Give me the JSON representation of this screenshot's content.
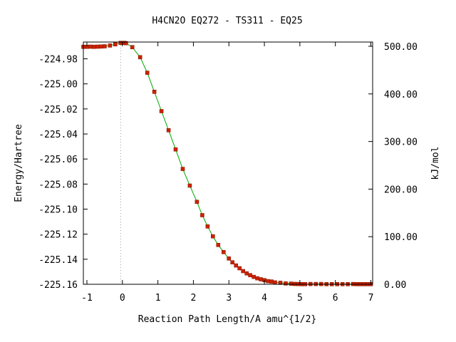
{
  "chart_data": {
    "type": "line",
    "title": "H4CN2O   EQ272 - TS311 - EQ25",
    "xlabel": "Reaction Path Length/A amu^{1/2}",
    "ylabel": "Energy/Hartree",
    "y2label": "kJ/mol",
    "xlim": [
      -1.1,
      7.05
    ],
    "ylim": [
      -225.16,
      -224.9666
    ],
    "y2lim": [
      0,
      509
    ],
    "xticks": [
      -1,
      0,
      1,
      2,
      3,
      4,
      5,
      6,
      7
    ],
    "xtick_labels": [
      "-1",
      "0",
      "1",
      "2",
      "3",
      "4",
      "5",
      "6",
      "7"
    ],
    "yticks": [
      -224.98,
      -225.0,
      -225.02,
      -225.04,
      -225.06,
      -225.08,
      -225.1,
      -225.12,
      -225.14,
      -225.16
    ],
    "ytick_labels": [
      "-224.98",
      "-225.00",
      "-225.02",
      "-225.04",
      "-225.06",
      "-225.08",
      "-225.10",
      "-225.12",
      "-225.14",
      "-225.16"
    ],
    "y2ticks": [
      0,
      100,
      200,
      300,
      400,
      500
    ],
    "y2tick_labels": [
      "0.00",
      "100.00",
      "200.00",
      "300.00",
      "400.00",
      "500.00"
    ],
    "ts_marker_x": -0.05,
    "grid": false,
    "line_color": "#00aa00",
    "marker_color": "#cc2200",
    "marker_edge_color": "#8b1a00",
    "ts_line_color": "#999999",
    "series": [
      {
        "x": [
          -1.1,
          -1.0,
          -0.9,
          -0.8,
          -0.7,
          -0.6,
          -0.5,
          -0.35,
          -0.2,
          -0.05,
          0.05,
          0.1,
          0.28,
          0.5,
          0.7,
          0.9,
          1.1,
          1.3,
          1.5,
          1.7,
          1.9,
          2.1,
          2.25,
          2.4,
          2.55,
          2.7,
          2.85,
          3.0,
          3.1,
          3.2,
          3.3,
          3.4,
          3.5,
          3.6,
          3.7,
          3.8,
          3.9,
          4.0,
          4.1,
          4.2,
          4.3,
          4.45,
          4.6,
          4.75,
          4.85,
          4.95,
          5.05,
          5.15,
          5.3,
          5.45,
          5.6,
          5.75,
          5.9,
          6.05,
          6.2,
          6.35,
          6.5,
          6.6,
          6.7,
          6.8,
          6.9,
          7.0
        ],
        "y": [
          -224.9704,
          -224.9704,
          -224.9703,
          -224.9704,
          -224.9703,
          -224.9702,
          -224.97,
          -224.9694,
          -224.9684,
          -224.9673,
          -224.9673,
          -224.9675,
          -224.9707,
          -224.9787,
          -224.9911,
          -225.0063,
          -225.0218,
          -225.037,
          -225.0523,
          -225.0679,
          -225.0812,
          -225.0942,
          -225.1048,
          -225.1138,
          -225.1217,
          -225.1286,
          -225.1343,
          -225.1394,
          -225.1425,
          -225.145,
          -225.1472,
          -225.1495,
          -225.1513,
          -225.1527,
          -225.1541,
          -225.1552,
          -225.156,
          -225.1567,
          -225.1575,
          -225.1578,
          -225.1585,
          -225.1588,
          -225.1593,
          -225.1595,
          -225.1597,
          -225.1598,
          -225.1599,
          -225.1599,
          -225.1598,
          -225.1598,
          -225.1598,
          -225.1599,
          -225.1599,
          -225.1599,
          -225.1599,
          -225.1599,
          -225.1598,
          -225.1599,
          -225.1599,
          -225.1599,
          -225.1599,
          -225.1599
        ]
      }
    ]
  }
}
